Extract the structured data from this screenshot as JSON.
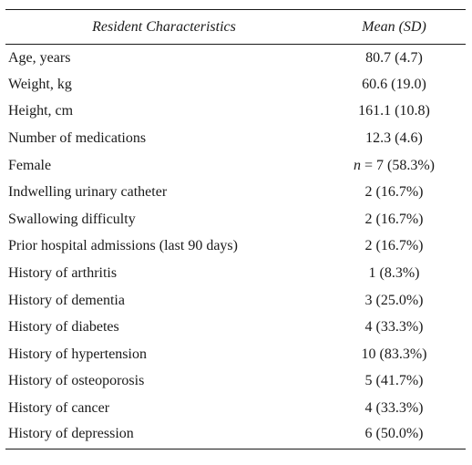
{
  "table": {
    "headers": {
      "characteristic": "Resident Characteristics",
      "mean": "Mean (SD)"
    },
    "rows": [
      {
        "label": "Age, years",
        "value": "80.7 (4.7)"
      },
      {
        "label": "Weight, kg",
        "value": "60.6 (19.0)"
      },
      {
        "label": "Height, cm",
        "value": "161.1 (10.8)"
      },
      {
        "label": "Number of medications",
        "value": "12.3 (4.6)"
      },
      {
        "label": "Female",
        "value_prefix": "n",
        "value": " = 7 (58.3%)"
      },
      {
        "label": "Indwelling urinary catheter",
        "value": "2 (16.7%)"
      },
      {
        "label": "Swallowing difficulty",
        "value": "2 (16.7%)"
      },
      {
        "label": "Prior hospital admissions (last 90 days)",
        "value": "2 (16.7%)"
      },
      {
        "label": "History of arthritis",
        "value": "1 (8.3%)"
      },
      {
        "label": "History of dementia",
        "value": "3 (25.0%)"
      },
      {
        "label": "History of diabetes",
        "value": "4 (33.3%)"
      },
      {
        "label": "History of hypertension",
        "value": "10 (83.3%)"
      },
      {
        "label": "History of osteoporosis",
        "value": "5 (41.7%)"
      },
      {
        "label": "History of cancer",
        "value": "4 (33.3%)"
      },
      {
        "label": "History of depression",
        "value": "6 (50.0%)"
      }
    ]
  }
}
